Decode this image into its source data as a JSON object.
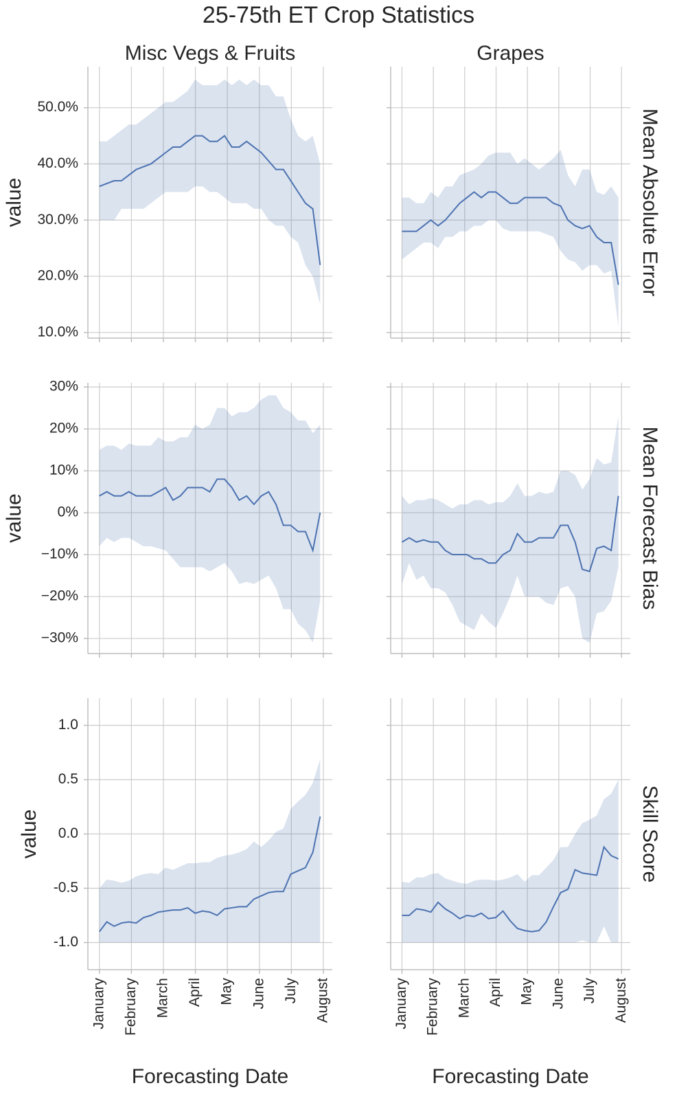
{
  "chart_data": {
    "type": "line",
    "title": "25-75th ET Crop Statistics",
    "x_label": "Forecasting Date",
    "y_label": "value",
    "color": "#4c72b0",
    "grid": true,
    "columns": [
      "Misc Vegs & Fruits",
      "Grapes"
    ],
    "x": [
      0,
      0.23,
      0.46,
      0.69,
      0.92,
      1.15,
      1.38,
      1.61,
      1.84,
      2.07,
      2.3,
      2.53,
      2.76,
      2.99,
      3.22,
      3.45,
      3.68,
      3.91,
      4.14,
      4.37,
      4.6,
      4.83,
      5.06,
      5.29,
      5.52,
      5.75,
      5.98,
      6.21,
      6.44,
      6.67,
      6.9
    ],
    "xlim": [
      -0.36,
      7.28
    ],
    "xticks": [
      {
        "value": 0,
        "label": "January"
      },
      {
        "value": 1,
        "label": "February"
      },
      {
        "value": 2,
        "label": "March"
      },
      {
        "value": 3,
        "label": "April"
      },
      {
        "value": 4,
        "label": "May"
      },
      {
        "value": 5,
        "label": "June"
      },
      {
        "value": 6,
        "label": "July"
      },
      {
        "value": 7,
        "label": "August"
      }
    ],
    "rows": [
      {
        "name": "Mean Absolute Error",
        "ylim": [
          9,
          57.3
        ],
        "yticks": [
          {
            "value": 10,
            "label": "10.0%"
          },
          {
            "value": 20,
            "label": "20.0%"
          },
          {
            "value": 30,
            "label": "30.0%"
          },
          {
            "value": 40,
            "label": "40.0%"
          },
          {
            "value": 50,
            "label": "50.0%"
          }
        ],
        "panels": [
          {
            "values": [
              36,
              36.5,
              37,
              37,
              38,
              39,
              39.5,
              40,
              41,
              42,
              43,
              43,
              44,
              45,
              45,
              44,
              44,
              45,
              43,
              43,
              44,
              43,
              42,
              40.5,
              39,
              39,
              37,
              35,
              33,
              32,
              22
            ],
            "upper": [
              44,
              44,
              45,
              46,
              47,
              47,
              48,
              49,
              50,
              51,
              51,
              52,
              53,
              55,
              54,
              54,
              54,
              55,
              54,
              55,
              54,
              55,
              54,
              54,
              52,
              52,
              48,
              45,
              44,
              45,
              40
            ],
            "lower": [
              30,
              30,
              30,
              32,
              32,
              32,
              32,
              33,
              34,
              35,
              35,
              35,
              35,
              36,
              36,
              35,
              35,
              34,
              33,
              33,
              33,
              32,
              32,
              30,
              29,
              29,
              27,
              26,
              22,
              20,
              15
            ]
          },
          {
            "values": [
              28,
              28,
              28,
              29,
              30,
              29,
              30,
              31.5,
              33,
              34,
              35,
              34,
              35,
              35,
              34,
              33,
              33,
              34,
              34,
              34,
              34,
              33,
              32.5,
              30,
              29,
              28.5,
              29,
              27,
              26,
              26,
              18.5
            ],
            "upper": [
              34,
              34,
              33,
              33,
              35,
              34,
              36,
              36,
              38,
              38.5,
              39,
              40,
              41.5,
              42,
              42,
              42,
              40,
              41,
              40,
              39,
              40,
              41,
              42.5,
              38,
              36,
              39,
              39,
              35,
              34.5,
              36,
              34
            ],
            "lower": [
              23,
              24,
              25,
              26,
              26,
              25,
              27,
              27,
              28,
              28,
              29,
              29,
              30,
              30,
              28.5,
              28,
              28,
              28,
              28,
              28,
              27.5,
              27,
              24.5,
              23,
              22.5,
              21,
              22,
              22,
              20.5,
              21,
              11
            ]
          }
        ]
      },
      {
        "name": "Mean Forecast Bias",
        "ylim": [
          -33.6,
          31
        ],
        "yticks": [
          {
            "value": -30,
            "label": "−30%"
          },
          {
            "value": -20,
            "label": "−20%"
          },
          {
            "value": -10,
            "label": "−10%"
          },
          {
            "value": 0,
            "label": "0%"
          },
          {
            "value": 10,
            "label": "10%"
          },
          {
            "value": 20,
            "label": "20%"
          },
          {
            "value": 30,
            "label": "30%"
          }
        ],
        "panels": [
          {
            "values": [
              4,
              5,
              4,
              4,
              5,
              4,
              4,
              4,
              5,
              6,
              3,
              4,
              6,
              6,
              6,
              5,
              8,
              8,
              6,
              3,
              4,
              2,
              4,
              5,
              2,
              -3,
              -3,
              -4.5,
              -4.5,
              -9,
              0
            ],
            "upper": [
              15,
              16,
              16,
              15,
              16.5,
              16,
              16,
              16,
              18,
              17,
              17,
              18,
              18,
              21,
              20,
              21,
              25,
              25,
              23,
              24,
              24,
              25,
              27,
              28,
              28,
              25,
              24,
              22,
              22,
              19,
              21
            ],
            "lower": [
              -8,
              -6,
              -7,
              -6,
              -6,
              -7,
              -8,
              -8,
              -8.5,
              -9,
              -11,
              -13,
              -13,
              -13,
              -13,
              -14,
              -13,
              -12,
              -14,
              -17,
              -16.5,
              -17,
              -16,
              -15,
              -18,
              -23,
              -23,
              -26.5,
              -28,
              -31,
              -21
            ]
          },
          {
            "values": [
              -7,
              -6,
              -7,
              -6.5,
              -7,
              -7,
              -9,
              -10,
              -10,
              -10,
              -11,
              -11,
              -12,
              -12,
              -10,
              -9,
              -5,
              -7,
              -7,
              -6,
              -6,
              -6,
              -3,
              -3,
              -7,
              -13.5,
              -14,
              -8.5,
              -8,
              -9,
              4
            ],
            "upper": [
              4,
              2,
              3,
              3,
              3.5,
              3,
              2,
              1,
              2,
              2,
              3,
              3,
              2,
              2.5,
              2.5,
              4,
              7,
              4,
              4,
              5,
              4.5,
              5,
              10,
              10,
              9,
              5.5,
              8,
              13,
              11.5,
              12,
              23
            ],
            "lower": [
              -17,
              -12,
              -16,
              -15,
              -18,
              -18,
              -19,
              -22,
              -26,
              -27,
              -28,
              -24,
              -26,
              -27.5,
              -24,
              -20,
              -15,
              -20,
              -20,
              -20,
              -21.5,
              -22,
              -18,
              -17.5,
              -20,
              -30,
              -31,
              -24,
              -23.5,
              -21,
              -13
            ]
          }
        ]
      },
      {
        "name": "Skill Score",
        "ylim": [
          -1.25,
          1.25
        ],
        "yticks": [
          {
            "value": -1,
            "label": "-1.0"
          },
          -0.5,
          {
            "value": 0,
            "label": "0.0"
          },
          0.5,
          {
            "value": 1,
            "label": "1.0"
          }
        ],
        "panels": [
          {
            "values": [
              -0.9,
              -0.81,
              -0.85,
              -0.82,
              -0.81,
              -0.82,
              -0.77,
              -0.75,
              -0.72,
              -0.71,
              -0.7,
              -0.7,
              -0.68,
              -0.73,
              -0.71,
              -0.72,
              -0.75,
              -0.69,
              -0.68,
              -0.67,
              -0.67,
              -0.6,
              -0.57,
              -0.54,
              -0.53,
              -0.53,
              -0.37,
              -0.34,
              -0.31,
              -0.17,
              0.16
            ],
            "upper": [
              -0.5,
              -0.42,
              -0.43,
              -0.45,
              -0.43,
              -0.39,
              -0.37,
              -0.36,
              -0.37,
              -0.31,
              -0.33,
              -0.3,
              -0.27,
              -0.27,
              -0.26,
              -0.26,
              -0.22,
              -0.2,
              -0.19,
              -0.17,
              -0.14,
              -0.07,
              -0.12,
              -0.06,
              0.02,
              0.05,
              0.23,
              0.3,
              0.36,
              0.47,
              0.69
            ],
            "lower": [
              -1,
              -1,
              -1,
              -1,
              -1,
              -1,
              -1,
              -1,
              -1,
              -1,
              -1,
              -1,
              -1,
              -1,
              -1,
              -1,
              -1,
              -1,
              -1,
              -1,
              -1,
              -1,
              -1,
              -1,
              -1,
              -1,
              -1,
              -1,
              -1,
              -1,
              -1
            ]
          },
          {
            "values": [
              -0.75,
              -0.75,
              -0.69,
              -0.7,
              -0.72,
              -0.63,
              -0.69,
              -0.73,
              -0.78,
              -0.75,
              -0.76,
              -0.73,
              -0.78,
              -0.77,
              -0.71,
              -0.8,
              -0.87,
              -0.89,
              -0.9,
              -0.89,
              -0.81,
              -0.67,
              -0.54,
              -0.51,
              -0.33,
              -0.36,
              -0.37,
              -0.38,
              -0.12,
              -0.2,
              -0.23
            ],
            "upper": [
              -0.44,
              -0.45,
              -0.4,
              -0.4,
              -0.37,
              -0.36,
              -0.41,
              -0.43,
              -0.45,
              -0.46,
              -0.43,
              -0.42,
              -0.42,
              -0.43,
              -0.42,
              -0.4,
              -0.37,
              -0.44,
              -0.38,
              -0.38,
              -0.31,
              -0.24,
              -0.12,
              -0.12,
              0,
              0.1,
              0.13,
              0.17,
              0.32,
              0.37,
              0.5
            ],
            "lower": [
              -1,
              -1,
              -1,
              -1,
              -1,
              -1,
              -1,
              -1,
              -1,
              -1,
              -1,
              -1,
              -1,
              -1,
              -1,
              -1,
              -1,
              -1,
              -1,
              -1,
              -1,
              -1,
              -1,
              -1,
              -1,
              -0.98,
              -1,
              -1,
              -0.85,
              -1,
              -1
            ]
          }
        ]
      }
    ]
  }
}
